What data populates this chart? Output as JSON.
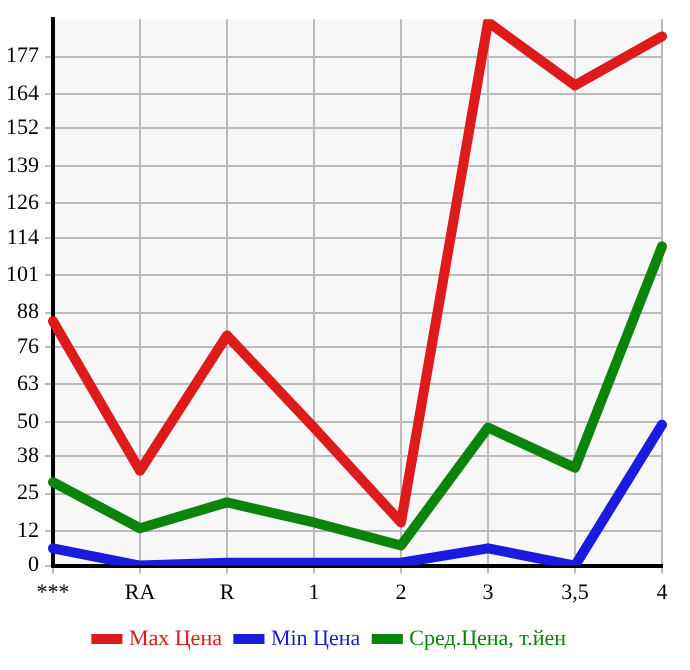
{
  "chart_data": {
    "type": "line",
    "categories": [
      "***",
      "RA",
      "R",
      "1",
      "2",
      "3",
      "3,5",
      "4"
    ],
    "series": [
      {
        "name": "Max Цена",
        "color": "#dd1b1b",
        "values": [
          85,
          33,
          80,
          48,
          15,
          189,
          167,
          184
        ]
      },
      {
        "name": "Min Цена",
        "color": "#1b1bdd",
        "values": [
          6,
          0,
          1,
          1,
          1,
          6,
          0,
          49
        ]
      },
      {
        "name": "Сред.Цена, т.йен",
        "color": "#0b840b",
        "values": [
          29,
          13,
          22,
          15,
          7,
          48,
          34,
          111
        ]
      }
    ],
    "ylim": [
      0,
      190
    ],
    "yticks": [
      0,
      12,
      25,
      38,
      50,
      63,
      76,
      88,
      101,
      114,
      126,
      139,
      152,
      164,
      177
    ],
    "grid": true,
    "legend": "bottom",
    "marker": "none",
    "line_style": "solid"
  }
}
